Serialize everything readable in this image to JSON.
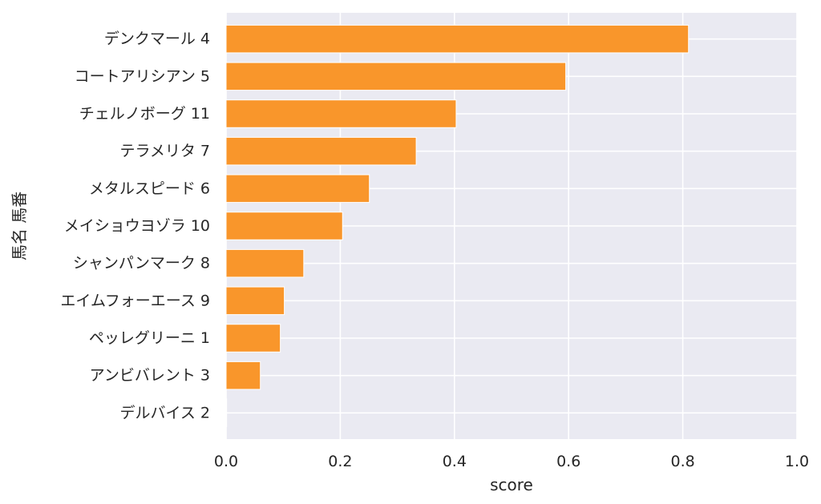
{
  "chart_data": {
    "type": "bar",
    "orientation": "horizontal",
    "categories": [
      "デンクマール 4",
      "コートアリシアン 5",
      "チェルノボーグ 11",
      "テラメリタ 7",
      "メタルスピード 6",
      "メイショウヨゾラ 10",
      "シャンパンマーク 8",
      "エイムフォーエース 9",
      "ペッレグリーニ 1",
      "アンビバレント 3",
      "デルバイス 2"
    ],
    "values": [
      0.81,
      0.595,
      0.403,
      0.333,
      0.251,
      0.204,
      0.136,
      0.102,
      0.095,
      0.06,
      0.001
    ],
    "xlabel": "score",
    "ylabel": "馬名 馬番",
    "xlim": [
      0,
      1.0
    ],
    "xticks": [
      "0.0",
      "0.2",
      "0.4",
      "0.6",
      "0.8",
      "1.0"
    ],
    "grid": true,
    "colors": {
      "bar": "#f9962b",
      "bar_edge": "#ffffff",
      "plot_background": "#eaeaf2",
      "grid": "#ffffff"
    }
  }
}
